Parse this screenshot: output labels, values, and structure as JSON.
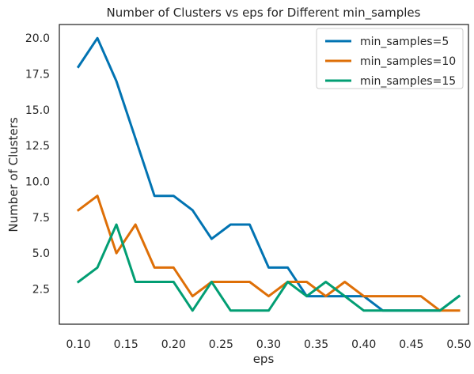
{
  "chart_data": {
    "type": "line",
    "title": "Number of Clusters vs eps for Different min_samples",
    "xlabel": "eps",
    "ylabel": "Number of Clusters",
    "xlim": [
      0.08,
      0.51
    ],
    "ylim": [
      0.05,
      20.95
    ],
    "x_ticks": [
      "0.10",
      "0.15",
      "0.20",
      "0.25",
      "0.30",
      "0.35",
      "0.40",
      "0.45",
      "0.50"
    ],
    "y_ticks": [
      "2.5",
      "5.0",
      "7.5",
      "10.0",
      "12.5",
      "15.0",
      "17.5",
      "20.0"
    ],
    "grid": false,
    "legend_position": "top-right",
    "x": [
      0.1,
      0.12,
      0.14,
      0.16,
      0.18,
      0.2,
      0.22,
      0.24,
      0.26,
      0.28,
      0.3,
      0.32,
      0.34,
      0.36,
      0.38,
      0.4,
      0.42,
      0.44,
      0.46,
      0.48,
      0.5
    ],
    "series": [
      {
        "name": "min_samples=5",
        "color": "#0173b2",
        "values": [
          18,
          20,
          17,
          13,
          9,
          9,
          8,
          6,
          7,
          7,
          4,
          4,
          2,
          2,
          2,
          2,
          1,
          1,
          1,
          1,
          2
        ]
      },
      {
        "name": "min_samples=10",
        "color": "#de6f07",
        "values": [
          8,
          9,
          5,
          7,
          4,
          4,
          2,
          3,
          3,
          3,
          2,
          3,
          3,
          2,
          3,
          2,
          2,
          2,
          2,
          1,
          1
        ]
      },
      {
        "name": "min_samples=15",
        "color": "#029e73",
        "values": [
          3,
          4,
          7,
          3,
          3,
          3,
          1,
          3,
          1,
          1,
          1,
          3,
          2,
          3,
          2,
          1,
          1,
          1,
          1,
          1,
          2
        ]
      }
    ]
  }
}
